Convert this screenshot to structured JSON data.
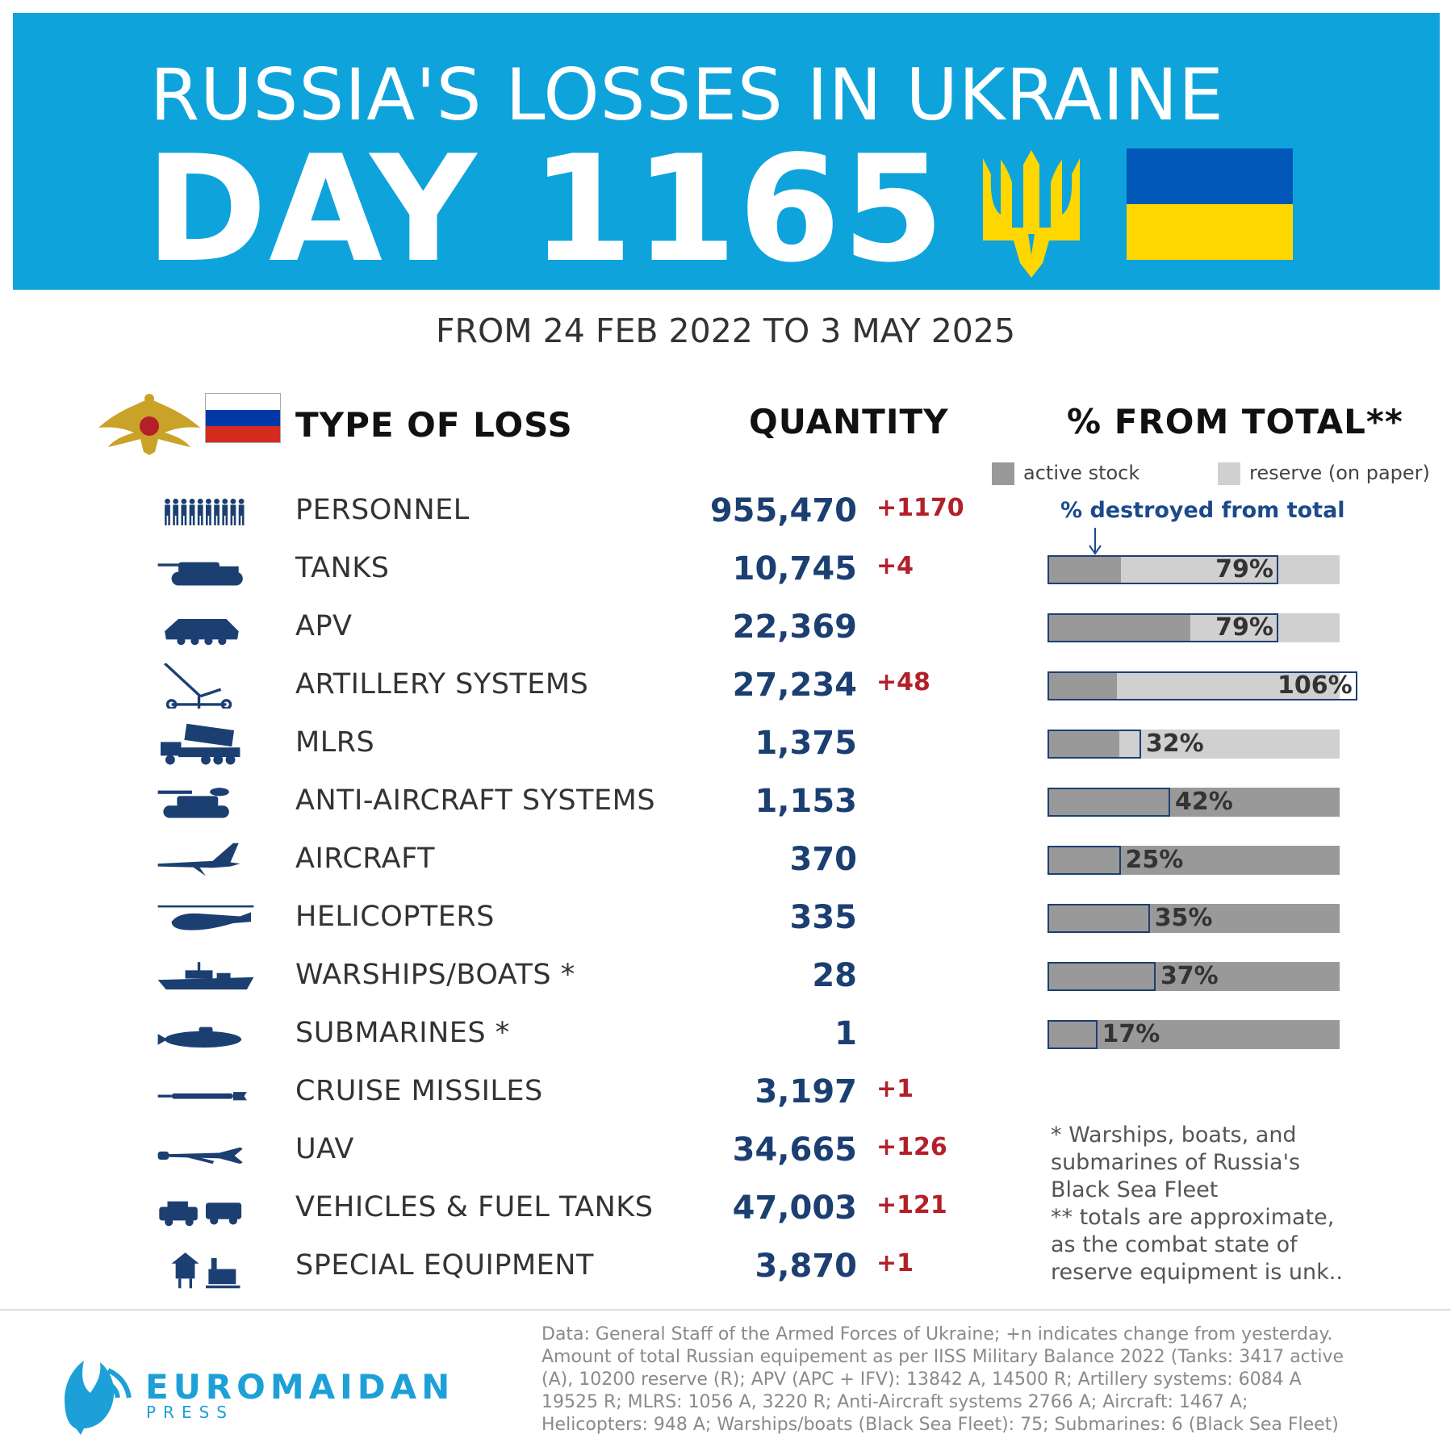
{
  "header": {
    "title": "RUSSIA'S LOSSES IN UKRAINE",
    "day": "DAY 1165",
    "period": "FROM 24 FEB 2022 TO 3 MAY 2025"
  },
  "columns": {
    "type": "TYPE OF LOSS",
    "quantity": "QUANTITY",
    "percent": "% FROM TOTAL**"
  },
  "legend": {
    "active": "active stock",
    "reserve": "reserve (on paper)",
    "destroyed": "% destroyed from total"
  },
  "colors": {
    "banner": "#0fa3dc",
    "active_stock": "#999999",
    "reserve_stock": "#d0d0d0",
    "quantity_text": "#1c3f72",
    "delta_text": "#b3202a",
    "ua_blue": "#0057b7",
    "ua_yellow": "#ffd700"
  },
  "chart_data": {
    "type": "table",
    "rows": [
      {
        "type": "PERSONNEL",
        "icon": "personnel-icon",
        "quantity": "955,470",
        "delta": "+1170"
      },
      {
        "type": "TANKS",
        "icon": "tank-icon",
        "quantity": "10,745",
        "delta": "+4",
        "active": 3417,
        "reserve": 10200,
        "percent": 79,
        "pct_label": "79%"
      },
      {
        "type": "APV",
        "icon": "apv-icon",
        "quantity": "22,369",
        "delta": "",
        "active": 13842,
        "reserve": 14500,
        "percent": 79,
        "pct_label": "79%"
      },
      {
        "type": "ARTILLERY SYSTEMS",
        "icon": "artillery-icon",
        "quantity": "27,234",
        "delta": "+48",
        "active": 6084,
        "reserve": 19525,
        "percent": 106,
        "pct_label": "106%"
      },
      {
        "type": "MLRS",
        "icon": "mlrs-icon",
        "quantity": "1,375",
        "delta": "",
        "active": 1056,
        "reserve": 3220,
        "percent": 32,
        "pct_label": "32%"
      },
      {
        "type": "ANTI-AIRCRAFT SYSTEMS",
        "icon": "anti-aircraft-icon",
        "quantity": "1,153",
        "delta": "",
        "active": 2766,
        "reserve": 0,
        "percent": 42,
        "pct_label": "42%"
      },
      {
        "type": "AIRCRAFT",
        "icon": "aircraft-icon",
        "quantity": "370",
        "delta": "",
        "active": 1467,
        "reserve": 0,
        "percent": 25,
        "pct_label": "25%"
      },
      {
        "type": "HELICOPTERS",
        "icon": "helicopter-icon",
        "quantity": "335",
        "delta": "",
        "active": 948,
        "reserve": 0,
        "percent": 35,
        "pct_label": "35%"
      },
      {
        "type": "WARSHIPS/BOATS *",
        "icon": "warship-icon",
        "quantity": "28",
        "delta": "",
        "active": 75,
        "reserve": 0,
        "percent": 37,
        "pct_label": "37%"
      },
      {
        "type": "SUBMARINES *",
        "icon": "submarine-icon",
        "quantity": "1",
        "delta": "",
        "active": 6,
        "reserve": 0,
        "percent": 17,
        "pct_label": "17%"
      },
      {
        "type": "CRUISE MISSILES",
        "icon": "cruise-missile-icon",
        "quantity": "3,197",
        "delta": "+1"
      },
      {
        "type": "UAV",
        "icon": "uav-icon",
        "quantity": "34,665",
        "delta": "+126"
      },
      {
        "type": "VEHICLES & FUEL TANKS",
        "icon": "vehicles-icon",
        "quantity": "47,003",
        "delta": "+121"
      },
      {
        "type": "SPECIAL EQUIPMENT",
        "icon": "special-equipment-icon",
        "quantity": "3,870",
        "delta": "+1"
      }
    ]
  },
  "footnote": [
    "* Warships, boats, and",
    "submarines of Russia's",
    "Black Sea Fleet",
    "** totals are approximate,",
    "as the combat state of",
    "reserve equipment is unk.."
  ],
  "footer": {
    "brand": "EUROMAIDAN",
    "brand_sub": "PRESS",
    "source": "Data: General Staff of the Armed Forces of Ukraine; +n indicates change from yesterday. Amount of total Russian equipement as per IISS Military Balance 2022 (Tanks: 3417 active (A), 10200 reserve (R); APV (APC + IFV): 13842 A, 14500 R; Artillery systems: 6084 A 19525 R; MLRS: 1056 A, 3220 R; Anti-Aircraft systems 2766 A; Aircraft: 1467 A; Helicopters: 948 A; Warships/boats (Black Sea Fleet): 75; Submarines: 6 (Black Sea Fleet)"
  }
}
